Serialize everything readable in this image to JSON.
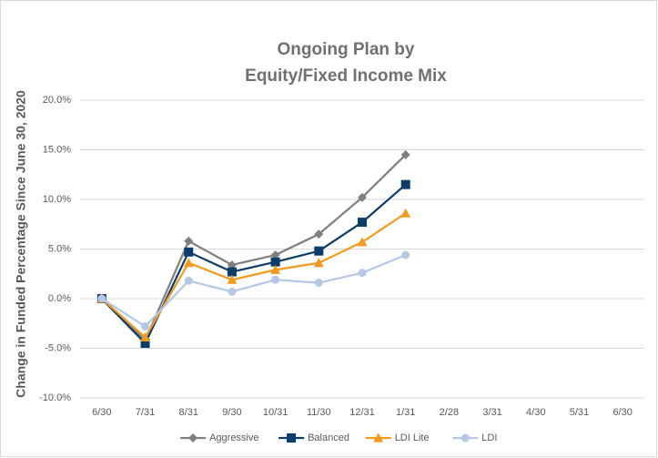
{
  "chart_data": {
    "type": "line",
    "title": [
      "Ongoing Plan by",
      "Equity/Fixed Income Mix"
    ],
    "y_label": "Change in Funded Percentage Since June 30, 2020",
    "categories": [
      "6/30",
      "7/31",
      "8/31",
      "9/30",
      "10/31",
      "11/30",
      "12/31",
      "1/31",
      "2/28",
      "3/31",
      "4/30",
      "5/31",
      "6/30"
    ],
    "series": [
      {
        "name": "Aggressive",
        "color": "#7f7f7f",
        "marker": "diamond",
        "values": [
          0,
          -4.2,
          5.8,
          3.4,
          4.4,
          6.5,
          10.2,
          14.5,
          null,
          null,
          null,
          null,
          null
        ]
      },
      {
        "name": "Balanced",
        "color": "#0b3d6b",
        "marker": "square",
        "values": [
          0,
          -4.5,
          4.7,
          2.7,
          3.7,
          4.8,
          7.7,
          11.5,
          null,
          null,
          null,
          null,
          null
        ]
      },
      {
        "name": "LDI Lite",
        "color": "#f39a1e",
        "marker": "triangle",
        "values": [
          0,
          -3.9,
          3.6,
          1.9,
          2.9,
          3.6,
          5.7,
          8.6,
          null,
          null,
          null,
          null,
          null
        ]
      },
      {
        "name": "LDI",
        "color": "#b4c7e7",
        "marker": "circle",
        "values": [
          0,
          -2.8,
          1.8,
          0.7,
          1.9,
          1.6,
          2.6,
          4.4,
          null,
          null,
          null,
          null,
          null
        ]
      }
    ],
    "ylim": [
      -10,
      20
    ],
    "yticks": [
      {
        "value": -10,
        "label": "-10.0%"
      },
      {
        "value": -5,
        "label": "-5.0%"
      },
      {
        "value": 0,
        "label": "0.0%"
      },
      {
        "value": 5,
        "label": "5.0%"
      },
      {
        "value": 10,
        "label": "10.0%"
      },
      {
        "value": 15,
        "label": "15.0%"
      },
      {
        "value": 20,
        "label": "20.0%"
      }
    ],
    "grid": true,
    "legend": "bottom"
  }
}
